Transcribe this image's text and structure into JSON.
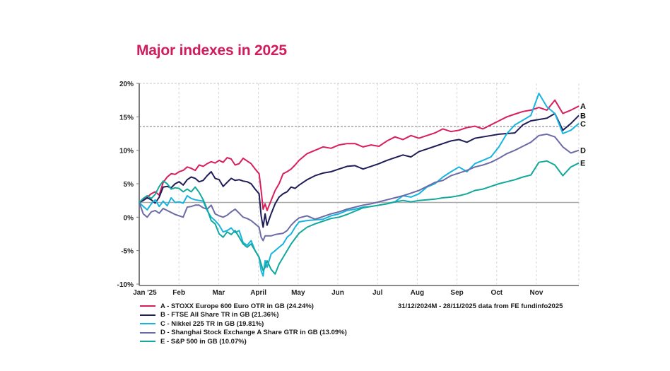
{
  "chart_data": {
    "type": "line",
    "title": "Major indexes in 2025",
    "xlabel": "",
    "ylabel": "",
    "ylim": [
      -10,
      20
    ],
    "y_ticks": [
      "20%",
      "15%",
      "10%",
      "5%",
      "0%",
      "-5%",
      "-10%"
    ],
    "y_tick_values": [
      20,
      15,
      10,
      5,
      0,
      -5,
      -10
    ],
    "x_ticks": [
      "Jan '25",
      "Feb",
      "Mar",
      "April",
      "May",
      "Jun",
      "Jul",
      "Aug",
      "Sep",
      "Oct",
      "Nov"
    ],
    "x_range_months": [
      0,
      11
    ],
    "grid": true,
    "legend_placement": "bottom-left",
    "baseline_value": 2.2,
    "x": [
      0,
      0.1,
      0.2,
      0.3,
      0.4,
      0.5,
      0.6,
      0.7,
      0.8,
      0.9,
      1.0,
      1.1,
      1.2,
      1.3,
      1.4,
      1.5,
      1.6,
      1.7,
      1.8,
      1.9,
      2.0,
      2.1,
      2.2,
      2.3,
      2.4,
      2.5,
      2.6,
      2.7,
      2.8,
      2.9,
      3.0,
      3.05,
      3.1,
      3.15,
      3.2,
      3.3,
      3.4,
      3.5,
      3.6,
      3.7,
      3.8,
      3.9,
      4.0,
      4.2,
      4.4,
      4.6,
      4.8,
      5.0,
      5.2,
      5.4,
      5.6,
      5.8,
      6.0,
      6.2,
      6.4,
      6.6,
      6.8,
      7.0,
      7.2,
      7.4,
      7.6,
      7.8,
      8.0,
      8.2,
      8.4,
      8.6,
      8.8,
      9.0,
      9.2,
      9.4,
      9.6,
      9.8,
      10.0,
      10.2,
      10.4,
      10.6,
      10.8,
      11.0
    ],
    "series": [
      {
        "name": "A - STOXX Europe 600 Euro OTR in GB (24.24%)",
        "end_label": "A",
        "color": "#d81e5b",
        "values": [
          2.2,
          2.6,
          3.0,
          3.5,
          3.8,
          3.3,
          5.2,
          6.0,
          6.5,
          6.4,
          6.8,
          7.0,
          7.5,
          7.3,
          7.0,
          7.8,
          7.6,
          8.0,
          8.3,
          8.1,
          8.5,
          8.2,
          8.9,
          8.7,
          7.8,
          8.0,
          8.8,
          8.4,
          8.0,
          7.2,
          6.5,
          4.0,
          1.2,
          2.0,
          1.0,
          2.5,
          4.0,
          5.0,
          6.5,
          6.8,
          7.2,
          7.8,
          8.5,
          9.5,
          10.0,
          10.5,
          10.3,
          10.8,
          11.0,
          11.0,
          10.5,
          10.8,
          10.6,
          11.4,
          12.0,
          11.6,
          12.2,
          11.8,
          12.2,
          12.6,
          13.2,
          12.8,
          13.0,
          13.4,
          13.6,
          13.2,
          13.8,
          14.4,
          15.0,
          15.4,
          15.8,
          16.0,
          16.4,
          16.0,
          17.5,
          15.5,
          16.0,
          16.6
        ]
      },
      {
        "name": "B - FTSE All Share TR in GB (21.36%)",
        "end_label": "B",
        "color": "#1f1d57",
        "values": [
          2.2,
          2.5,
          2.9,
          2.6,
          2.1,
          3.0,
          4.5,
          4.6,
          4.4,
          5.0,
          5.3,
          4.8,
          5.6,
          6.0,
          5.8,
          5.3,
          5.5,
          6.2,
          6.8,
          5.8,
          5.6,
          4.6,
          5.2,
          5.8,
          5.5,
          5.6,
          5.4,
          5.3,
          5.0,
          4.2,
          3.5,
          0.2,
          -1.5,
          0.5,
          -1.2,
          0.5,
          2.0,
          3.0,
          3.5,
          3.8,
          4.5,
          4.3,
          4.8,
          5.6,
          6.2,
          6.6,
          6.8,
          7.2,
          7.6,
          7.7,
          7.2,
          7.6,
          8.0,
          8.5,
          8.9,
          9.3,
          9.0,
          9.8,
          10.2,
          10.6,
          11.0,
          11.4,
          11.6,
          11.2,
          11.8,
          12.0,
          12.2,
          12.4,
          12.5,
          12.6,
          13.8,
          14.4,
          14.6,
          14.8,
          15.5,
          13.0,
          14.0,
          15.2
        ]
      },
      {
        "name": "C - Nikkei 225 TR in GB (19.81%)",
        "end_label": "C",
        "color": "#18b4e0",
        "values": [
          2.2,
          1.6,
          1.1,
          2.0,
          2.6,
          1.6,
          2.4,
          1.7,
          2.9,
          2.2,
          2.3,
          2.1,
          3.2,
          2.8,
          2.6,
          2.5,
          2.4,
          1.0,
          0.0,
          -0.5,
          -1.2,
          -2.2,
          -2.0,
          -1.6,
          -2.3,
          -2.0,
          -3.8,
          -4.2,
          -3.5,
          -5.0,
          -6.0,
          -8.0,
          -8.8,
          -6.5,
          -7.5,
          -5.5,
          -5.0,
          -4.5,
          -4.0,
          -3.0,
          -2.5,
          -1.5,
          -0.7,
          -0.5,
          -0.4,
          -0.3,
          0.2,
          0.5,
          1.0,
          1.2,
          1.5,
          1.6,
          1.8,
          2.0,
          2.3,
          3.2,
          3.0,
          3.5,
          4.5,
          5.0,
          6.0,
          6.8,
          7.5,
          6.8,
          8.0,
          8.5,
          9.0,
          10.5,
          12.5,
          13.8,
          14.5,
          15.2,
          18.5,
          16.5,
          15.5,
          12.5,
          13.0,
          14.0
        ]
      },
      {
        "name": "D - Shanghai Stock Exchange A Share GTR in GB (13.09%)",
        "end_label": "D",
        "color": "#6b6ba6",
        "values": [
          2.2,
          0.5,
          0.0,
          0.8,
          1.0,
          0.6,
          1.3,
          1.0,
          0.7,
          0.4,
          0.2,
          0.0,
          1.5,
          1.6,
          1.8,
          1.8,
          1.4,
          1.2,
          1.8,
          0.5,
          0.2,
          0.0,
          0.3,
          0.8,
          1.2,
          0.6,
          0.0,
          -0.2,
          -0.5,
          -1.0,
          -1.5,
          -3.0,
          -3.5,
          -2.8,
          -2.8,
          -2.8,
          -2.6,
          -2.5,
          -2.4,
          -2.0,
          -1.2,
          -0.6,
          -0.1,
          0.2,
          -0.3,
          0.1,
          0.5,
          0.8,
          1.2,
          1.5,
          1.8,
          2.0,
          2.3,
          2.6,
          2.9,
          3.2,
          3.6,
          4.0,
          4.6,
          5.2,
          5.5,
          6.2,
          6.6,
          7.0,
          7.5,
          7.8,
          8.2,
          8.8,
          9.5,
          10.0,
          10.6,
          11.2,
          12.2,
          12.4,
          12.0,
          10.5,
          9.6,
          10.0
        ]
      },
      {
        "name": "E - S&P 500 in GB (10.07%)",
        "end_label": "E",
        "color": "#12a89c",
        "values": [
          2.2,
          2.8,
          3.2,
          2.8,
          3.4,
          4.6,
          5.4,
          5.0,
          4.2,
          4.4,
          4.3,
          3.8,
          4.2,
          3.8,
          4.5,
          3.7,
          2.6,
          1.2,
          -0.5,
          -1.0,
          -2.5,
          -3.0,
          -2.2,
          -2.6,
          -2.0,
          -3.0,
          -4.0,
          -4.5,
          -4.0,
          -5.0,
          -6.0,
          -7.0,
          -8.0,
          -7.5,
          -6.5,
          -7.8,
          -8.5,
          -7.0,
          -6.0,
          -5.0,
          -4.0,
          -3.2,
          -2.4,
          -1.5,
          -1.0,
          -0.6,
          -0.2,
          0.0,
          0.4,
          0.9,
          1.4,
          1.6,
          1.8,
          2.0,
          2.3,
          2.5,
          2.3,
          2.5,
          2.6,
          2.7,
          2.9,
          3.0,
          3.2,
          3.5,
          4.0,
          4.2,
          4.6,
          5.0,
          5.3,
          5.6,
          6.0,
          6.3,
          8.2,
          8.4,
          7.8,
          6.2,
          7.5,
          8.1
        ]
      }
    ]
  },
  "legend": {
    "items": [
      {
        "label": "A - STOXX Europe 600 Euro OTR in GB (24.24%)",
        "color": "#d81e5b"
      },
      {
        "label": "B - FTSE All Share TR in GB (21.36%)",
        "color": "#1f1d57"
      },
      {
        "label": "C - Nikkei 225 TR in GB (19.81%)",
        "color": "#18b4e0"
      },
      {
        "label": "D - Shanghai Stock Exchange A Share GTR in GB (13.09%)",
        "color": "#6b6ba6"
      },
      {
        "label": "E - S&P 500 in GB (10.07%)",
        "color": "#12a89c"
      }
    ]
  },
  "source_note": "31/12/2024M - 28/11/2025 data from FE fundinfo2025",
  "colors": {
    "title": "#d01c5b",
    "axis": "#7a7a7a",
    "baseline": "#aaaaaa",
    "grid": "#d6d6d6"
  }
}
